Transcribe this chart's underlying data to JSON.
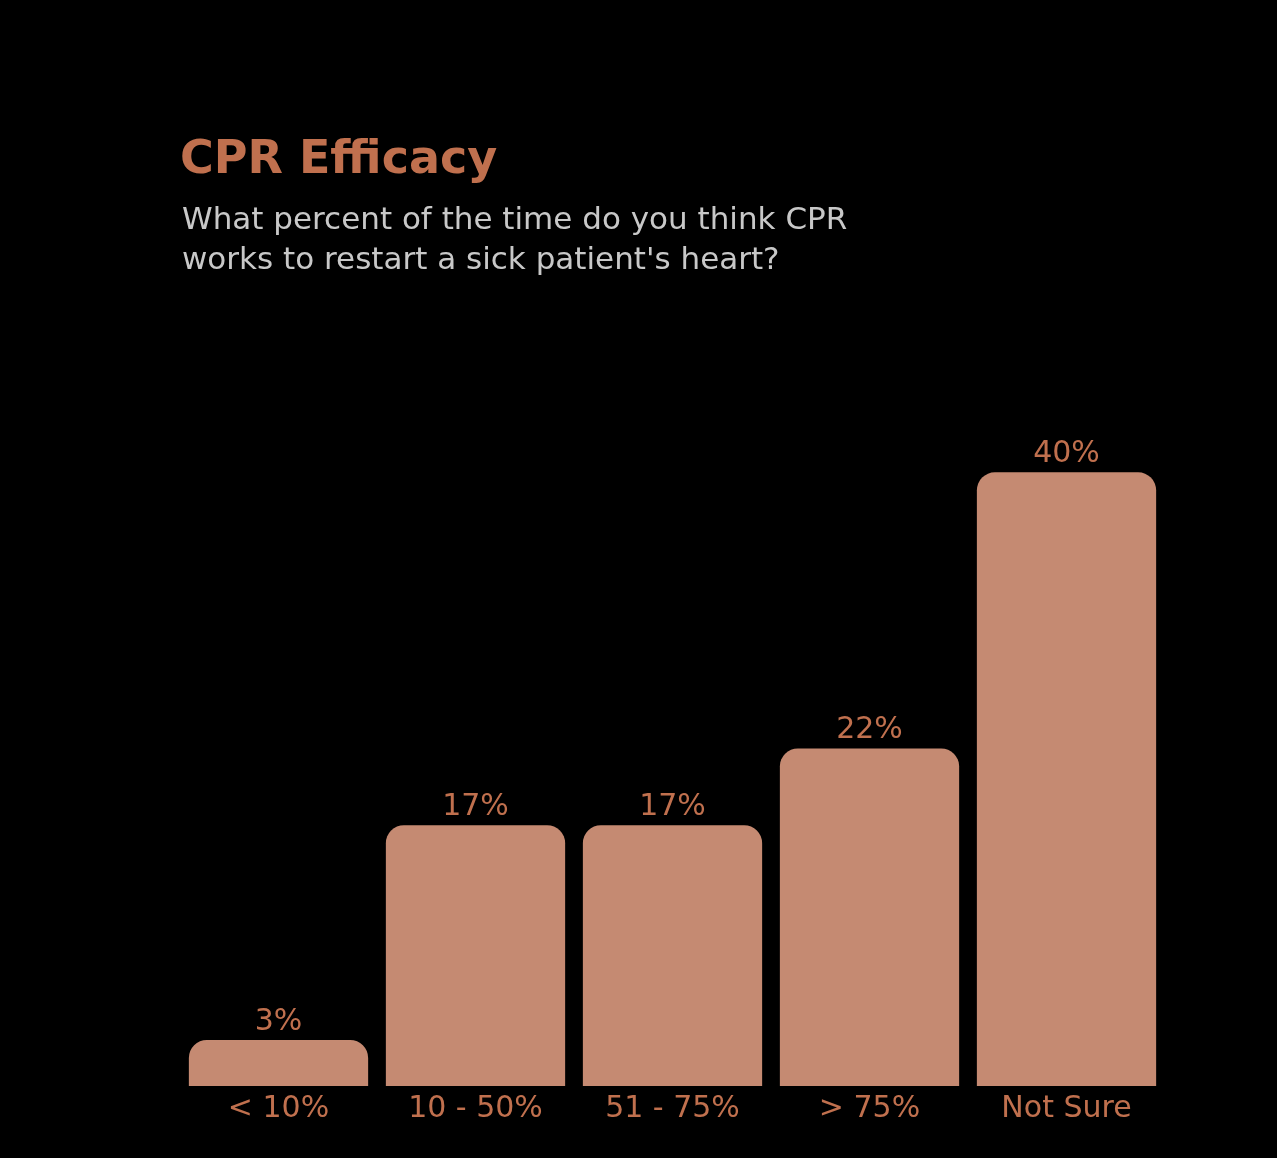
{
  "chart_data": {
    "type": "bar",
    "title": "CPR Efficacy",
    "subtitle": "What percent of the time do you think CPR\nworks to restart a sick patient's heart?",
    "categories": [
      "< 10%",
      "10 - 50%",
      "51 - 75%",
      "> 75%",
      "Not Sure"
    ],
    "values": [
      3,
      17,
      17,
      22,
      40
    ],
    "value_labels": [
      "3%",
      "17%",
      "17%",
      "22%",
      "40%"
    ],
    "color": "#c58a72",
    "grid": false
  }
}
